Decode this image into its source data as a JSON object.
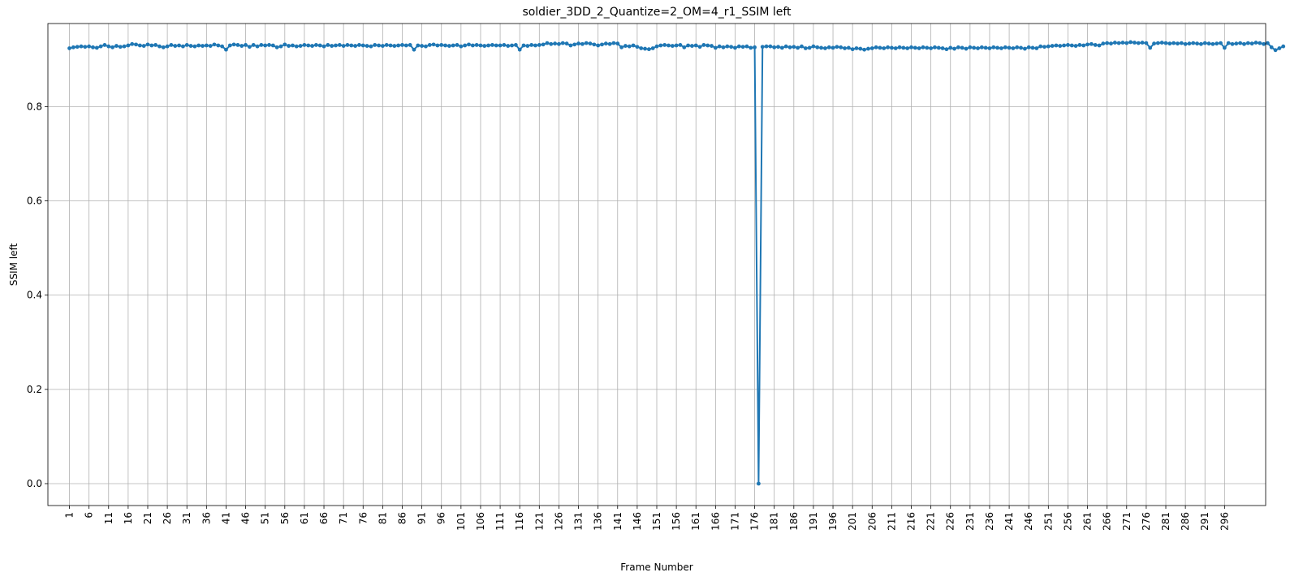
{
  "chart_data": {
    "type": "line",
    "title": "soldier_3DD_2_Quantize=2_OM=4_r1_SSIM left",
    "xlabel": "Frame Number",
    "ylabel": "SSIM left",
    "grid": true,
    "x_range": [
      1,
      300
    ],
    "xlim": [
      -4.5,
      306.5
    ],
    "ylim": [
      -0.0465,
      0.9765
    ],
    "y_ticks": [
      0.0,
      0.2,
      0.4,
      0.6,
      0.8
    ],
    "y_tick_labels": [
      "0.0",
      "0.2",
      "0.4",
      "0.6",
      "0.8"
    ],
    "x_ticks": [
      1,
      6,
      11,
      16,
      21,
      26,
      31,
      36,
      41,
      46,
      51,
      56,
      61,
      66,
      71,
      76,
      81,
      86,
      91,
      96,
      101,
      106,
      111,
      116,
      121,
      126,
      131,
      136,
      141,
      146,
      151,
      156,
      161,
      166,
      171,
      176,
      181,
      186,
      191,
      196,
      201,
      206,
      211,
      216,
      221,
      226,
      231,
      236,
      241,
      246,
      251,
      256,
      261,
      266,
      271,
      276,
      281,
      286,
      291,
      296
    ],
    "x_tick_labels": [
      "1",
      "6",
      "11",
      "16",
      "21",
      "26",
      "31",
      "36",
      "41",
      "46",
      "51",
      "56",
      "61",
      "66",
      "71",
      "76",
      "81",
      "86",
      "91",
      "96",
      "101",
      "106",
      "111",
      "116",
      "121",
      "126",
      "131",
      "136",
      "141",
      "146",
      "151",
      "156",
      "161",
      "166",
      "171",
      "176",
      "181",
      "186",
      "191",
      "196",
      "201",
      "206",
      "211",
      "216",
      "221",
      "226",
      "231",
      "236",
      "241",
      "246",
      "251",
      "256",
      "261",
      "266",
      "271",
      "276",
      "281",
      "286",
      "291",
      "296"
    ],
    "series": [
      {
        "color": "#1f77b4",
        "marker": "circle",
        "y": [
          0.924,
          0.926,
          0.927,
          0.928,
          0.927,
          0.928,
          0.926,
          0.925,
          0.928,
          0.931,
          0.928,
          0.926,
          0.929,
          0.927,
          0.928,
          0.93,
          0.933,
          0.932,
          0.93,
          0.929,
          0.932,
          0.93,
          0.931,
          0.928,
          0.926,
          0.928,
          0.931,
          0.929,
          0.93,
          0.928,
          0.931,
          0.929,
          0.928,
          0.93,
          0.929,
          0.93,
          0.929,
          0.932,
          0.93,
          0.928,
          0.921,
          0.93,
          0.932,
          0.931,
          0.929,
          0.931,
          0.927,
          0.931,
          0.928,
          0.931,
          0.93,
          0.931,
          0.93,
          0.926,
          0.928,
          0.932,
          0.929,
          0.93,
          0.928,
          0.929,
          0.931,
          0.93,
          0.929,
          0.931,
          0.93,
          0.928,
          0.931,
          0.929,
          0.93,
          0.931,
          0.929,
          0.931,
          0.93,
          0.929,
          0.931,
          0.93,
          0.929,
          0.928,
          0.931,
          0.93,
          0.929,
          0.931,
          0.93,
          0.929,
          0.93,
          0.931,
          0.93,
          0.931,
          0.921,
          0.93,
          0.929,
          0.928,
          0.931,
          0.932,
          0.93,
          0.931,
          0.93,
          0.929,
          0.93,
          0.931,
          0.928,
          0.93,
          0.932,
          0.93,
          0.931,
          0.93,
          0.929,
          0.93,
          0.931,
          0.93,
          0.93,
          0.931,
          0.929,
          0.93,
          0.931,
          0.921,
          0.93,
          0.929,
          0.931,
          0.93,
          0.931,
          0.932,
          0.935,
          0.933,
          0.934,
          0.933,
          0.935,
          0.934,
          0.93,
          0.932,
          0.934,
          0.933,
          0.935,
          0.934,
          0.932,
          0.93,
          0.932,
          0.934,
          0.933,
          0.935,
          0.934,
          0.926,
          0.929,
          0.928,
          0.93,
          0.927,
          0.924,
          0.923,
          0.922,
          0.924,
          0.928,
          0.93,
          0.931,
          0.93,
          0.929,
          0.93,
          0.931,
          0.926,
          0.93,
          0.929,
          0.93,
          0.927,
          0.931,
          0.93,
          0.929,
          0.925,
          0.928,
          0.926,
          0.928,
          0.927,
          0.925,
          0.928,
          0.927,
          0.928,
          0.925,
          0.926,
          0.0,
          0.927,
          0.928,
          0.928,
          0.926,
          0.927,
          0.925,
          0.928,
          0.926,
          0.927,
          0.925,
          0.928,
          0.924,
          0.925,
          0.928,
          0.926,
          0.925,
          0.924,
          0.926,
          0.925,
          0.927,
          0.926,
          0.924,
          0.925,
          0.922,
          0.924,
          0.923,
          0.921,
          0.923,
          0.924,
          0.926,
          0.925,
          0.924,
          0.926,
          0.925,
          0.924,
          0.926,
          0.925,
          0.924,
          0.926,
          0.925,
          0.924,
          0.926,
          0.925,
          0.924,
          0.926,
          0.925,
          0.924,
          0.922,
          0.925,
          0.923,
          0.926,
          0.925,
          0.923,
          0.926,
          0.925,
          0.924,
          0.926,
          0.925,
          0.924,
          0.926,
          0.925,
          0.924,
          0.926,
          0.925,
          0.924,
          0.926,
          0.925,
          0.923,
          0.926,
          0.925,
          0.924,
          0.928,
          0.927,
          0.928,
          0.929,
          0.93,
          0.929,
          0.93,
          0.931,
          0.93,
          0.929,
          0.931,
          0.93,
          0.932,
          0.933,
          0.931,
          0.93,
          0.934,
          0.935,
          0.934,
          0.936,
          0.935,
          0.936,
          0.935,
          0.937,
          0.936,
          0.935,
          0.936,
          0.935,
          0.925,
          0.934,
          0.935,
          0.936,
          0.935,
          0.934,
          0.935,
          0.934,
          0.935,
          0.933,
          0.934,
          0.935,
          0.934,
          0.933,
          0.935,
          0.934,
          0.933,
          0.934,
          0.935,
          0.925,
          0.935,
          0.933,
          0.934,
          0.935,
          0.933,
          0.935,
          0.934,
          0.936,
          0.935,
          0.933,
          0.935,
          0.926,
          0.92,
          0.924,
          0.928
        ]
      }
    ]
  }
}
